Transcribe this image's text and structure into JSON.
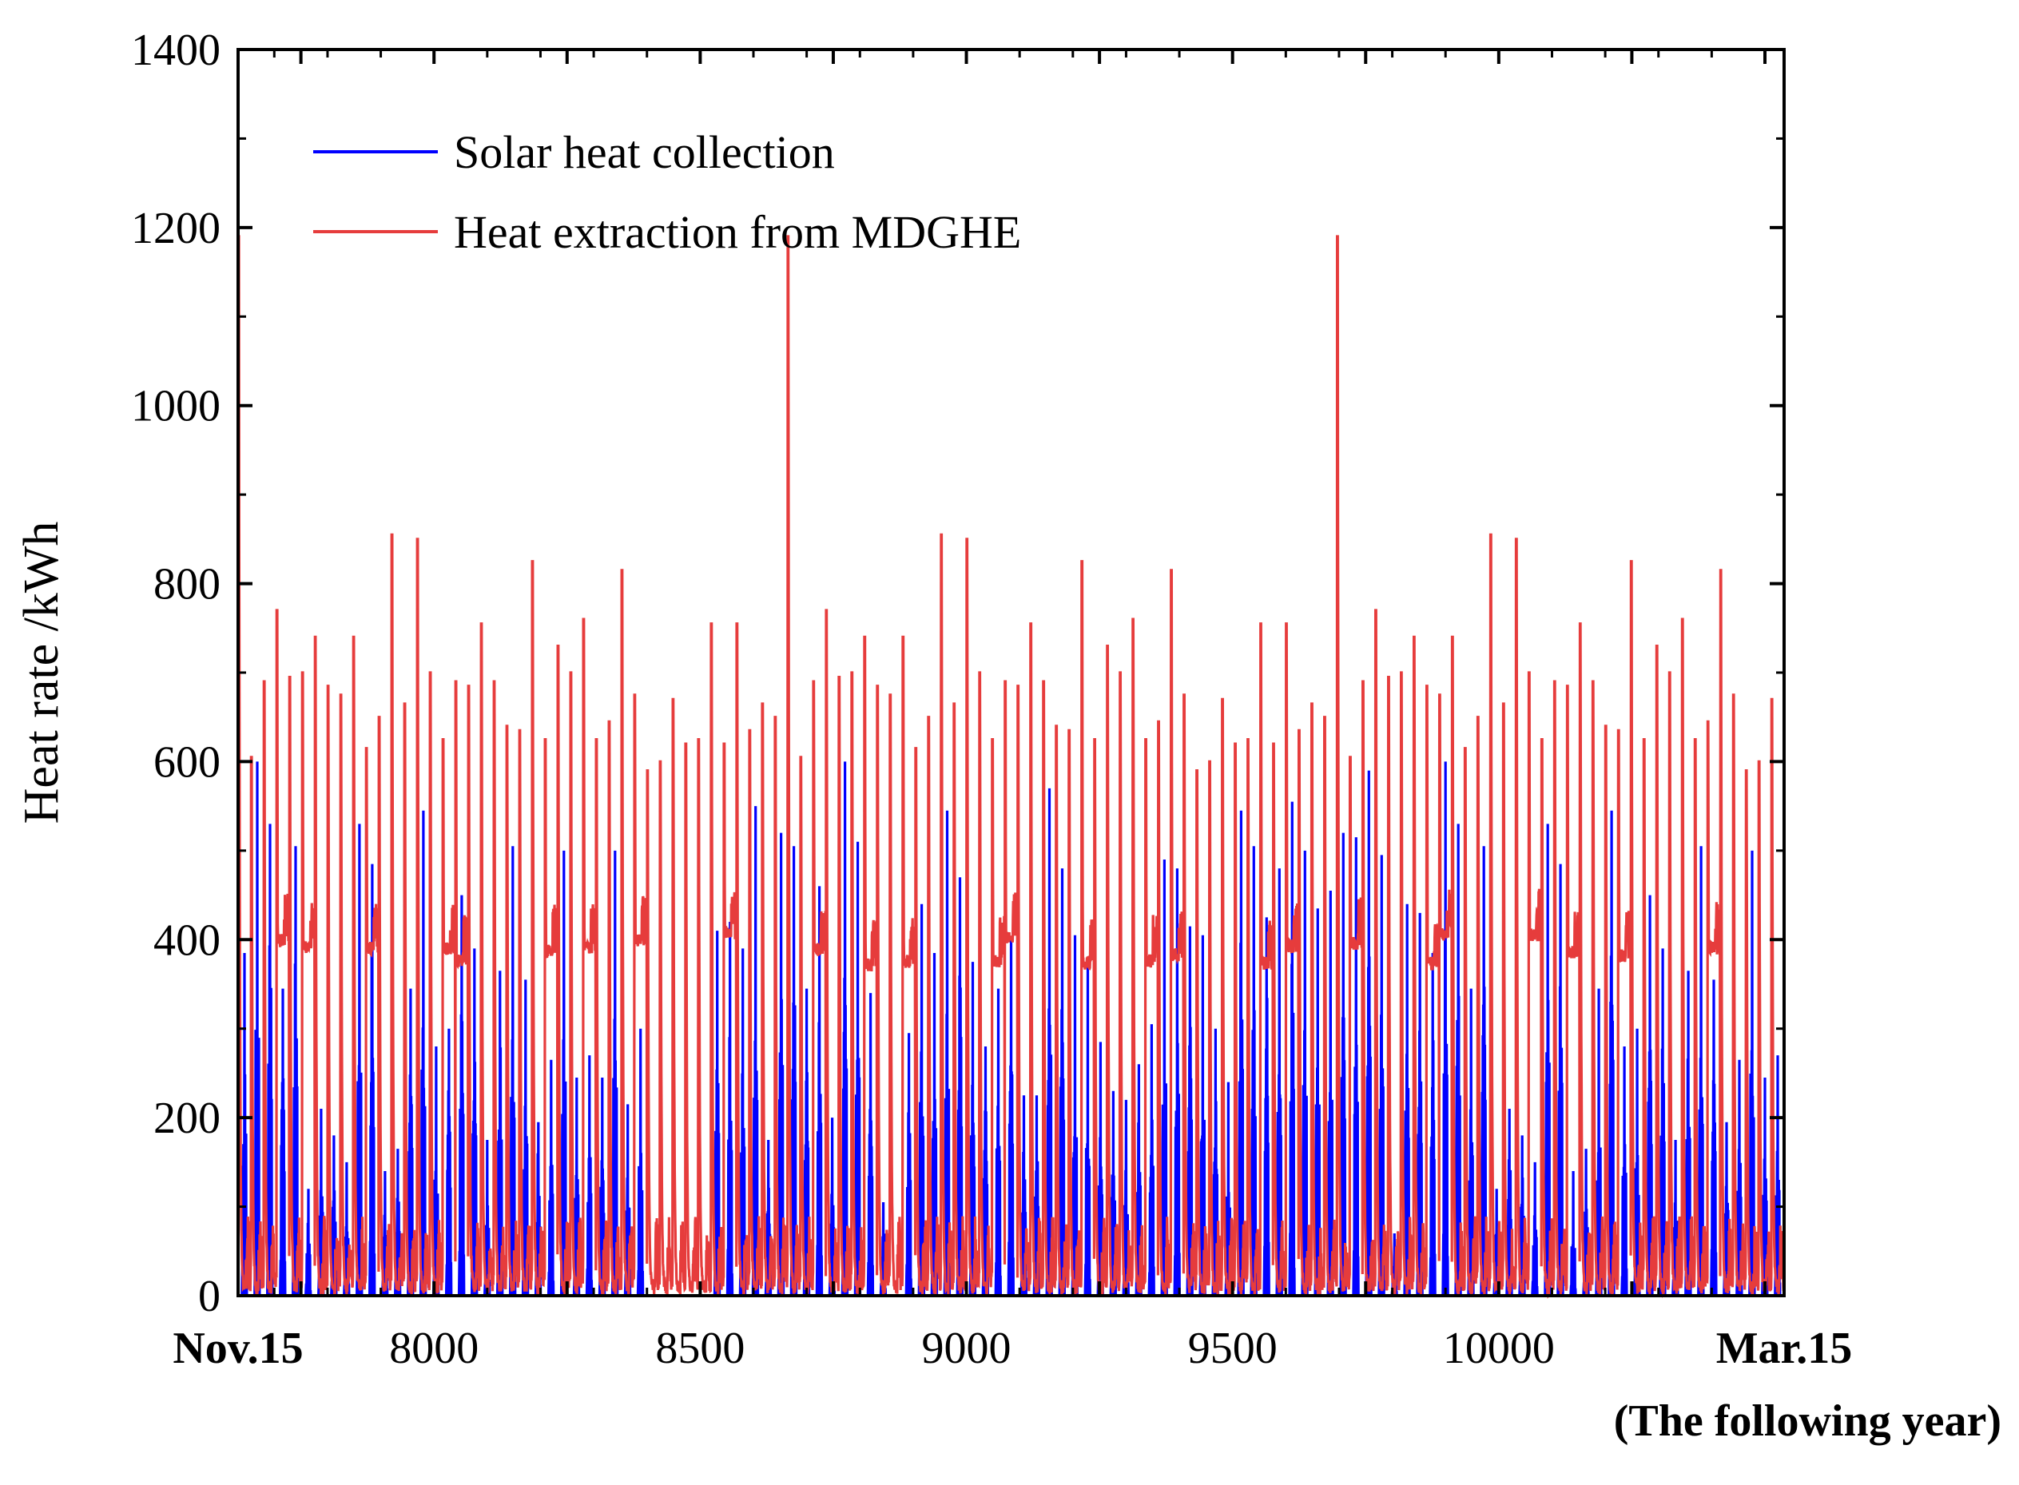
{
  "chart_data": {
    "type": "line",
    "title": "",
    "xlabel": "",
    "ylabel": "Heat rate /kWh",
    "xlim": [
      7632,
      10536
    ],
    "ylim": [
      0,
      1400
    ],
    "yticks": [
      0,
      200,
      400,
      600,
      800,
      1000,
      1200,
      1400
    ],
    "xticks": [
      {
        "value": 7632,
        "label": "Nov.15",
        "bold": true
      },
      {
        "value": 8000,
        "label": "8000",
        "bold": false
      },
      {
        "value": 8500,
        "label": "8500",
        "bold": false
      },
      {
        "value": 9000,
        "label": "9000",
        "bold": false
      },
      {
        "value": 9500,
        "label": "9500",
        "bold": false
      },
      {
        "value": 10000,
        "label": "10000",
        "bold": false
      },
      {
        "value": 10536,
        "label": "Mar.15",
        "bold": true
      }
    ],
    "x_note": "(The following year)",
    "legend_position": "top-left",
    "series": [
      {
        "name": "Solar heat collection",
        "color": "#0000ff",
        "style": "daily-pulses",
        "peaks": [
          385,
          600,
          530,
          345,
          505,
          120,
          210,
          180,
          150,
          530,
          485,
          140,
          165,
          345,
          545,
          280,
          300,
          450,
          390,
          175,
          365,
          505,
          355,
          195,
          265,
          500,
          245,
          270,
          245,
          500,
          215,
          300,
          0,
          0,
          0,
          0,
          0,
          410,
          420,
          390,
          550,
          175,
          520,
          505,
          345,
          460,
          200,
          600,
          510,
          340,
          105,
          0,
          295,
          440,
          385,
          545,
          470,
          375,
          280,
          345,
          400,
          225,
          225,
          570,
          480,
          405,
          380,
          285,
          230,
          220,
          260,
          305,
          490,
          480,
          415,
          405,
          300,
          240,
          545,
          505,
          425,
          480,
          555,
          500,
          435,
          455,
          520,
          515,
          590,
          495,
          70,
          440,
          430
        ]
      },
      {
        "name": "Heat extraction from MDGHE",
        "color": "#e63c3c",
        "style": "line",
        "peaks": [
          1190,
          605,
          690,
          770,
          695,
          700,
          740,
          685,
          675,
          740,
          615,
          650,
          855,
          665,
          850,
          700,
          625,
          690,
          685,
          755,
          690,
          640,
          635,
          825,
          625,
          730,
          700,
          760,
          625,
          645,
          815,
          675,
          590,
          600,
          670,
          620,
          625,
          755,
          620,
          755,
          635,
          665,
          650
        ]
      }
    ]
  }
}
